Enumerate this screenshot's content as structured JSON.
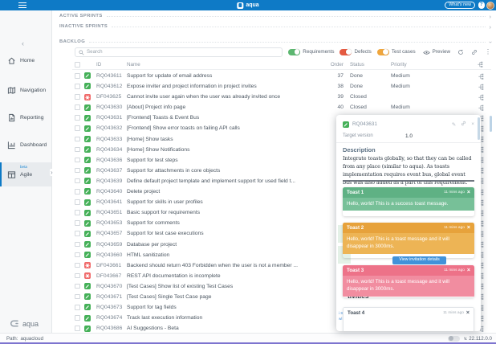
{
  "topbar": {
    "app_name": "aqua",
    "whats_new_label": "What's new",
    "help_label": "?"
  },
  "sidebar": {
    "items": [
      {
        "label": "Home",
        "icon": "home-icon",
        "active": false,
        "badge": ""
      },
      {
        "label": "Navigation",
        "icon": "map-icon",
        "active": false,
        "badge": ""
      },
      {
        "label": "Reporting",
        "icon": "report-icon",
        "active": false,
        "badge": ""
      },
      {
        "label": "Dashboard",
        "icon": "dashboard-icon",
        "active": false,
        "badge": ""
      },
      {
        "label": "Agile",
        "icon": "board-icon",
        "active": true,
        "badge": "beta"
      }
    ],
    "logo_text": "aqua"
  },
  "sections": {
    "active_sprints": "ACTIVE SPRINTS",
    "inactive_sprints": "INACTIVE SPRINTS",
    "backlog": "BACKLOG"
  },
  "toolbar": {
    "search_placeholder": "Search",
    "toggles": [
      {
        "label": "Requirements",
        "color": "#5cb770",
        "on": true
      },
      {
        "label": "Defects",
        "color": "#e55a41",
        "on": true
      },
      {
        "label": "Test cases",
        "color": "#f0a63c",
        "on": true
      }
    ],
    "preview_label": "Preview"
  },
  "table": {
    "columns": {
      "id": "ID",
      "name": "Name",
      "order": "Order",
      "status": "Status",
      "priority": "Priority"
    },
    "rows": [
      {
        "id": "RQ043611",
        "type": "requirement",
        "name": "Support for update of email address",
        "order": "37",
        "status": "Done",
        "priority": "Medium"
      },
      {
        "id": "RQ043612",
        "type": "requirement",
        "name": "Expose inviter and project information in project invites",
        "order": "38",
        "status": "Done",
        "priority": "Medium"
      },
      {
        "id": "DF043625",
        "type": "defect",
        "name": "Cannot invite user again when the user was already invited once",
        "order": "39",
        "status": "Closed",
        "priority": ""
      },
      {
        "id": "RQ043630",
        "type": "requirement",
        "name": "[About] Project info page",
        "order": "40",
        "status": "Closed",
        "priority": "Medium"
      },
      {
        "id": "RQ043631",
        "type": "requirement",
        "name": "[Frontend] Toasts & Event Bus",
        "order": "41",
        "status": "",
        "priority": ""
      },
      {
        "id": "RQ043632",
        "type": "requirement",
        "name": "[Frontend] Show error toasts on failing API calls",
        "order": "42",
        "status": "",
        "priority": ""
      },
      {
        "id": "RQ043633",
        "type": "requirement",
        "name": "[Home] Show tasks",
        "order": "43",
        "status": "",
        "priority": ""
      },
      {
        "id": "RQ043634",
        "type": "requirement",
        "name": "[Home] Show Notifications",
        "order": "44",
        "status": "",
        "priority": ""
      },
      {
        "id": "RQ043636",
        "type": "requirement",
        "name": "Support for test steps",
        "order": "45",
        "status": "",
        "priority": ""
      },
      {
        "id": "RQ043637",
        "type": "requirement",
        "name": "Support for attachments in core objects",
        "order": "46",
        "status": "",
        "priority": ""
      },
      {
        "id": "RQ043639",
        "type": "requirement",
        "name": "Define default project template and implement support for used field t...",
        "order": "47",
        "status": "",
        "priority": ""
      },
      {
        "id": "RQ043640",
        "type": "requirement",
        "name": "Delete project",
        "order": "48",
        "status": "",
        "priority": ""
      },
      {
        "id": "RQ043641",
        "type": "requirement",
        "name": "Support for skills in user profiles",
        "order": "49",
        "status": "",
        "priority": ""
      },
      {
        "id": "RQ043651",
        "type": "requirement",
        "name": "Basic support for requirements",
        "order": "50",
        "status": "",
        "priority": ""
      },
      {
        "id": "RQ043653",
        "type": "requirement",
        "name": "Support for comments",
        "order": "51",
        "status": "",
        "priority": ""
      },
      {
        "id": "RQ043657",
        "type": "requirement",
        "name": "Support for test case executions",
        "order": "52",
        "status": "",
        "priority": ""
      },
      {
        "id": "RQ043659",
        "type": "requirement",
        "name": "Database per project",
        "order": "53",
        "status": "",
        "priority": ""
      },
      {
        "id": "RQ043660",
        "type": "requirement",
        "name": "HTML sanitization",
        "order": "54",
        "status": "",
        "priority": ""
      },
      {
        "id": "DF043661",
        "type": "defect",
        "name": "Backend should return 403 Forbidden when the user is not a member ...",
        "order": "55",
        "status": "",
        "priority": ""
      },
      {
        "id": "DF043667",
        "type": "defect",
        "name": "REST API documentation is incomplete",
        "order": "56",
        "status": "",
        "priority": ""
      },
      {
        "id": "RQ043670",
        "type": "requirement",
        "name": "[Test Cases] Show list of existing Test Cases",
        "order": "57",
        "status": "",
        "priority": ""
      },
      {
        "id": "RQ043671",
        "type": "requirement",
        "name": "[Test Cases] Single Test Case page",
        "order": "58",
        "status": "",
        "priority": ""
      },
      {
        "id": "RQ043673",
        "type": "requirement",
        "name": "Support for tag fields",
        "order": "59",
        "status": "",
        "priority": ""
      },
      {
        "id": "RQ043674",
        "type": "requirement",
        "name": "Track last execution information",
        "order": "60",
        "status": "",
        "priority": ""
      },
      {
        "id": "RQ043686",
        "type": "requirement",
        "name": "AI Suggestions - Beta",
        "order": "61",
        "status": "",
        "priority": ""
      }
    ]
  },
  "preview_panel": {
    "item_id": "RQ043631",
    "target_version_label": "Target version",
    "target_version_value": "1.0",
    "description_title": "Description",
    "description_text": "Integrate toasts globally, so that they can be called from any place (similar to aqua). As toasts implementation requires event bus, global event bus was also added as a part of this requirement.",
    "embedded_button_label": "View invitation details",
    "background_fragment": "tivities",
    "background_link_line1": "i Sa",
    "background_link_line2": "wl i",
    "toasts": [
      {
        "title": "Toast 1",
        "time": "11 mins ago",
        "message": "Hello, world! This is a success toast message.",
        "variant": "success",
        "header_color": "#5fb184",
        "body_color": "#77c098",
        "text_color": "#ffffff"
      },
      {
        "title": "Toast 2",
        "time": "11 mins ago",
        "message": "Hello, world! This is a toast message and it will disappear in 3000ms.",
        "variant": "warning",
        "header_color": "#e7a23b",
        "body_color": "#edb455",
        "text_color": "#ffffff"
      },
      {
        "title": "Toast 3",
        "time": "11 mins ago",
        "message": "Hello, world! This is a toast message and it will disappear in 3000ms.",
        "variant": "danger",
        "header_color": "#ed7288",
        "body_color": "#f18da0",
        "text_color": "#ffffff"
      },
      {
        "title": "Toast 4",
        "time": "11 mins ago",
        "message": "",
        "variant": "plain",
        "header_color": "#ffffff",
        "body_color": "#ffffff",
        "text_color": "#3f4a55"
      }
    ]
  },
  "statusbar": {
    "path_label": "Path:",
    "path_value": "aquacloud",
    "version": "v. 22.112.0.0"
  }
}
